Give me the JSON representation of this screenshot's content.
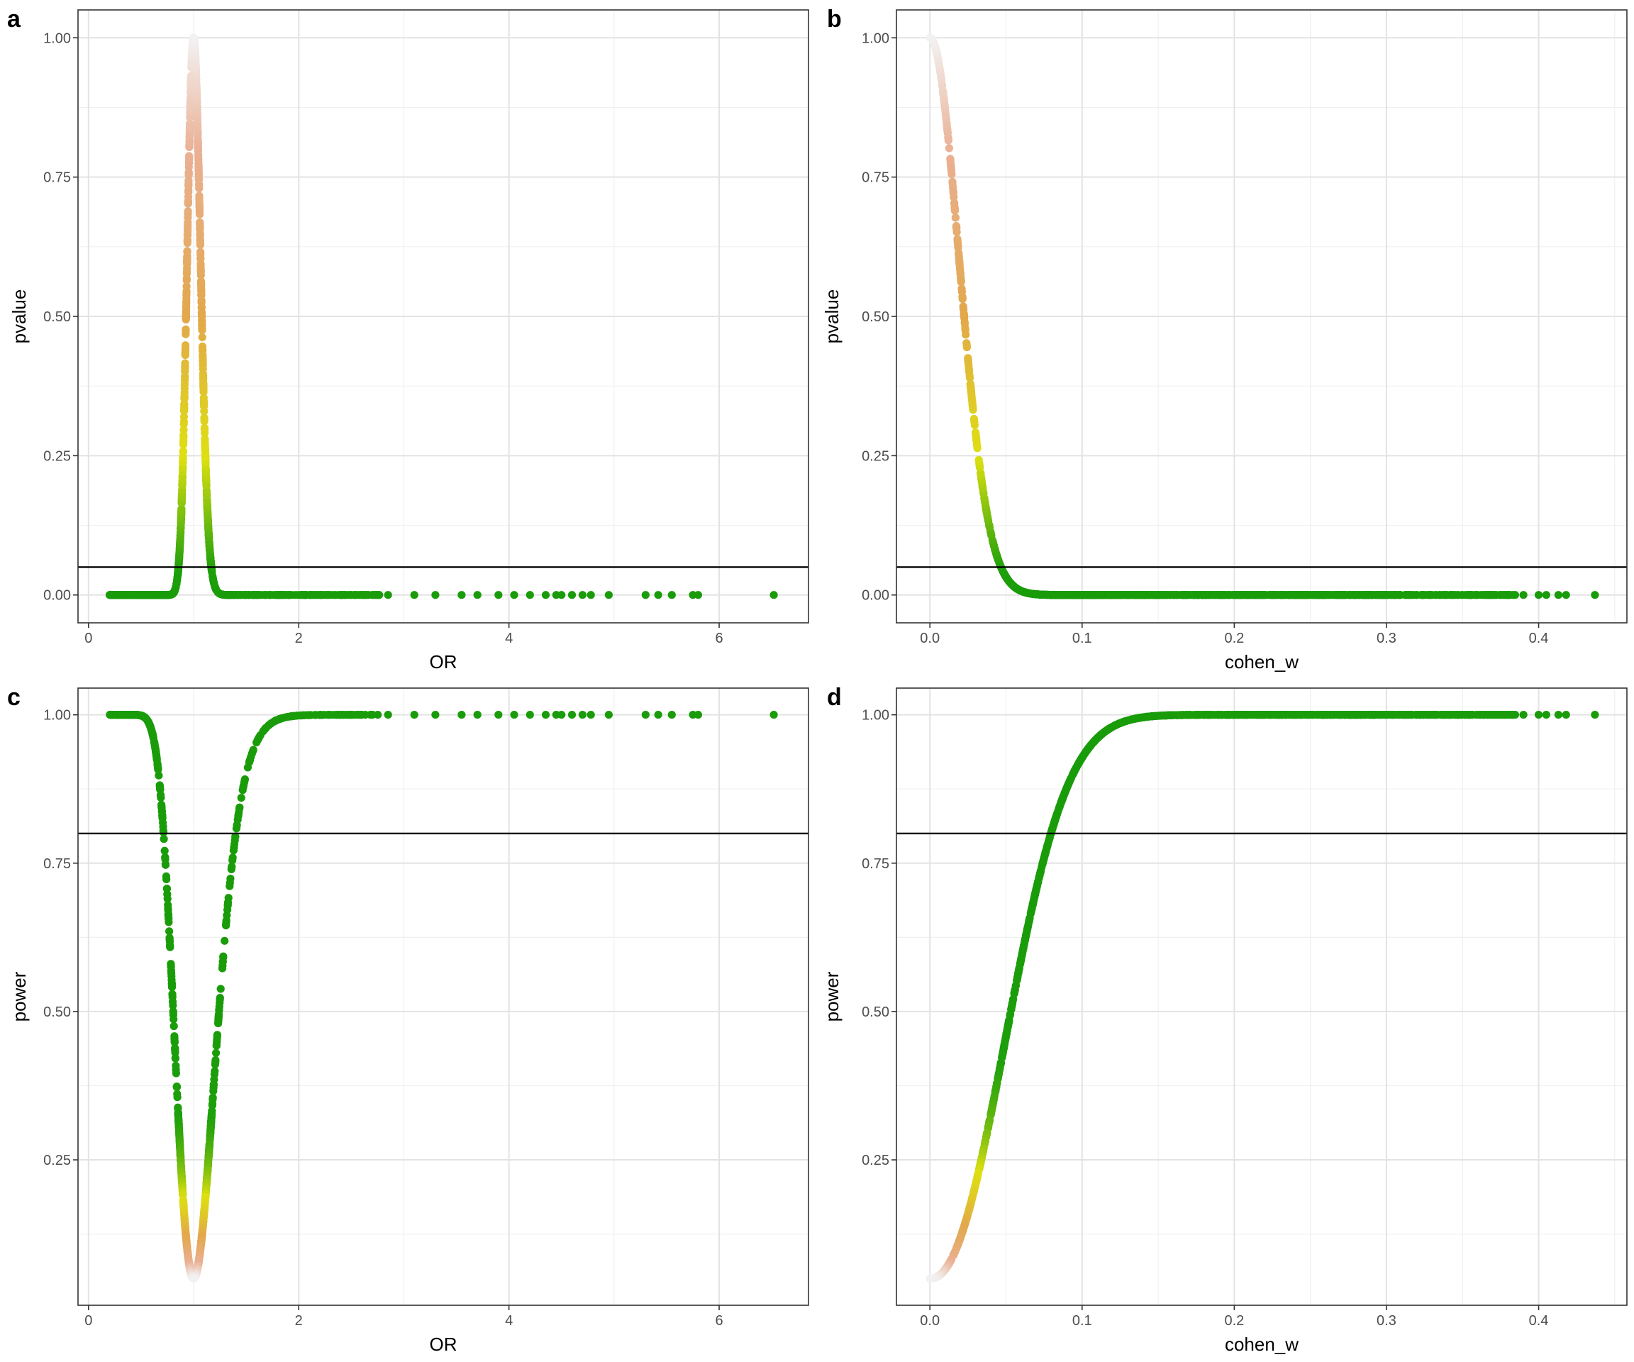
{
  "panels": [
    {
      "letter": "a",
      "chart_data": {
        "type": "scatter",
        "title": "",
        "xlabel": "OR",
        "ylabel": "pvalue",
        "xlim": [
          -0.1,
          6.85
        ],
        "ylim": [
          -0.05,
          1.05
        ],
        "xticks": [
          0,
          2,
          4,
          6
        ],
        "xtick_labels": [
          "0",
          "2",
          "4",
          "6"
        ],
        "yticks": [
          0,
          0.25,
          0.5,
          0.75,
          1.0
        ],
        "ytick_labels": [
          "0.00",
          "0.25",
          "0.50",
          "0.75",
          "1.00"
        ],
        "hline": 0.05,
        "grid": true,
        "color_scale": "pvalue: 0 green (#1a9c0a), 0.25 yellow (#e0e010), 0.5 orange (#e0a84a), 1.0 near-white",
        "curve": "pvalue ~ exp(-((ln OR)/0.09)^2), clustered in OR 0.2 to 1.5, sparse outliers to 6.5",
        "sample_points": [
          [
            0.2,
            0.0
          ],
          [
            0.5,
            0.0
          ],
          [
            0.8,
            0.01
          ],
          [
            0.9,
            0.2
          ],
          [
            0.95,
            0.55
          ],
          [
            1.0,
            1.0
          ],
          [
            1.05,
            0.75
          ],
          [
            1.1,
            0.4
          ],
          [
            1.2,
            0.05
          ],
          [
            1.5,
            0.0
          ],
          [
            2.0,
            0.0
          ],
          [
            3.0,
            0.0
          ],
          [
            4.0,
            0.0
          ],
          [
            4.95,
            0.0
          ],
          [
            5.3,
            0.0
          ],
          [
            5.55,
            0.0
          ],
          [
            5.8,
            0.0
          ],
          [
            6.52,
            0.0
          ]
        ]
      }
    },
    {
      "letter": "b",
      "chart_data": {
        "type": "scatter",
        "title": "",
        "xlabel": "cohen_w",
        "ylabel": "pvalue",
        "xlim": [
          -0.022,
          0.458
        ],
        "ylim": [
          -0.05,
          1.05
        ],
        "xticks": [
          0,
          0.1,
          0.2,
          0.3,
          0.4
        ],
        "xtick_labels": [
          "0.0",
          "0.1",
          "0.2",
          "0.3",
          "0.4"
        ],
        "yticks": [
          0,
          0.25,
          0.5,
          0.75,
          1.0
        ],
        "ytick_labels": [
          "0.00",
          "0.25",
          "0.50",
          "0.75",
          "1.00"
        ],
        "hline": 0.05,
        "grid": true,
        "curve": "pvalue ~ exp(-(w/0.027)^2), from w=0 to about 0.437",
        "sample_points": [
          [
            0.0,
            1.0
          ],
          [
            0.01,
            0.87
          ],
          [
            0.02,
            0.58
          ],
          [
            0.03,
            0.29
          ],
          [
            0.04,
            0.11
          ],
          [
            0.05,
            0.03
          ],
          [
            0.07,
            0.0
          ],
          [
            0.2,
            0.0
          ],
          [
            0.3,
            0.0
          ],
          [
            0.4,
            0.0
          ],
          [
            0.437,
            0.0
          ]
        ]
      }
    },
    {
      "letter": "c",
      "chart_data": {
        "type": "scatter",
        "title": "",
        "xlabel": "OR",
        "ylabel": "power",
        "xlim": [
          -0.1,
          6.85
        ],
        "ylim": [
          0.005,
          1.045
        ],
        "xticks": [
          0,
          2,
          4,
          6
        ],
        "xtick_labels": [
          "0",
          "2",
          "4",
          "6"
        ],
        "yticks": [
          0.25,
          0.5,
          0.75,
          1.0
        ],
        "ytick_labels": [
          "0.25",
          "0.50",
          "0.75",
          "1.00"
        ],
        "hline": 0.8,
        "grid": true,
        "curve": "power = 0.05 + 0.95*(1 - exp(-((ln OR)/0.27)^2)), minimum 0.05 at OR=1",
        "sample_points": [
          [
            0.2,
            1.0
          ],
          [
            0.5,
            1.0
          ],
          [
            0.7,
            0.8
          ],
          [
            0.85,
            0.3
          ],
          [
            1.0,
            0.05
          ],
          [
            1.2,
            0.3
          ],
          [
            1.45,
            0.8
          ],
          [
            1.8,
            0.99
          ],
          [
            2.0,
            1.0
          ],
          [
            4.0,
            1.0
          ],
          [
            6.52,
            1.0
          ]
        ]
      }
    },
    {
      "letter": "d",
      "chart_data": {
        "type": "scatter",
        "title": "",
        "xlabel": "cohen_w",
        "ylabel": "power",
        "xlim": [
          -0.022,
          0.458
        ],
        "ylim": [
          0.005,
          1.045
        ],
        "xticks": [
          0,
          0.1,
          0.2,
          0.3,
          0.4
        ],
        "xtick_labels": [
          "0.0",
          "0.1",
          "0.2",
          "0.3",
          "0.4"
        ],
        "yticks": [
          0.25,
          0.5,
          0.75,
          1.0
        ],
        "ytick_labels": [
          "0.25",
          "0.50",
          "0.75",
          "1.00"
        ],
        "hline": 0.8,
        "grid": true,
        "curve": "power = 0.05 + 0.95*(1 - exp(-(w/0.065)^2.2)), rising from 0.05 at w=0 to 1.0 by w~0.17",
        "sample_points": [
          [
            0.0,
            0.05
          ],
          [
            0.02,
            0.12
          ],
          [
            0.04,
            0.3
          ],
          [
            0.06,
            0.5
          ],
          [
            0.088,
            0.8
          ],
          [
            0.12,
            0.97
          ],
          [
            0.17,
            1.0
          ],
          [
            0.3,
            1.0
          ],
          [
            0.437,
            1.0
          ]
        ]
      }
    }
  ]
}
